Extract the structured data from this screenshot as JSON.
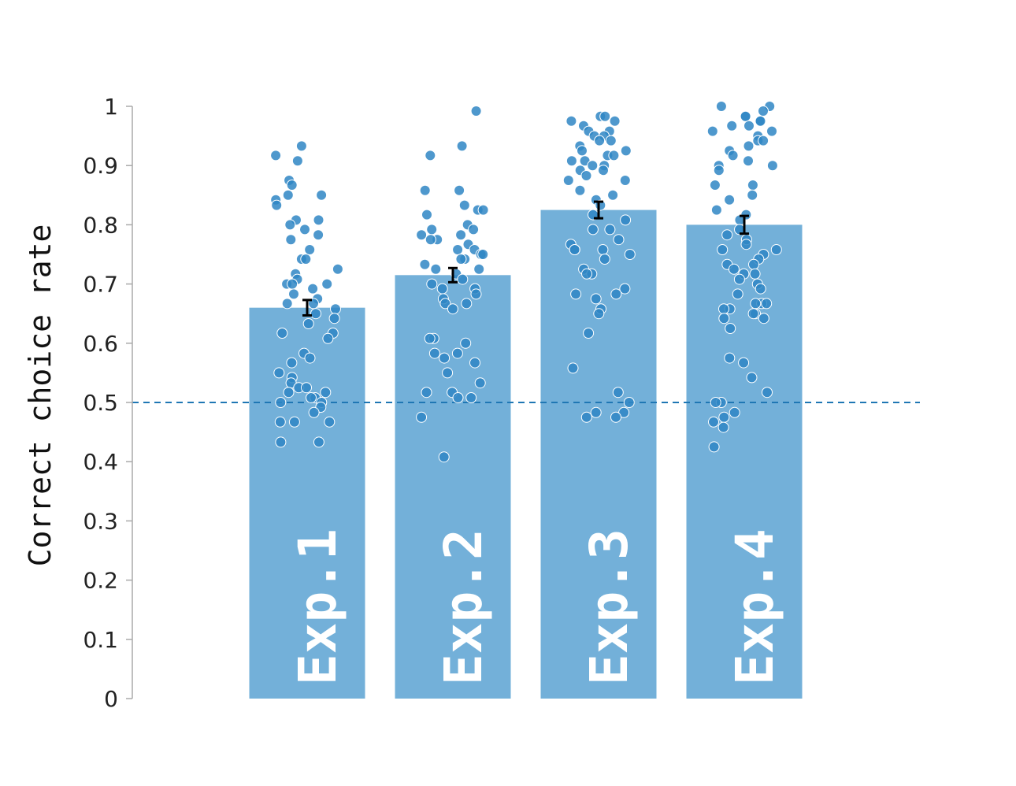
{
  "chart_data": {
    "type": "bar",
    "categories": [
      "Exp.1",
      "Exp.2",
      "Exp.3",
      "Exp.4"
    ],
    "values": [
      0.66,
      0.715,
      0.825,
      0.8
    ],
    "errors": [
      0.013,
      0.012,
      0.014,
      0.015
    ],
    "ylabel": "Correct choice rate",
    "ylim": [
      0,
      1
    ],
    "yticks": [
      0,
      0.1,
      0.2,
      0.3,
      0.4,
      0.5,
      0.6,
      0.7,
      0.8,
      0.9,
      1
    ],
    "ytick_labels": [
      "0",
      "0.1",
      "0.2",
      "0.3",
      "0.4",
      "0.5",
      "0.6",
      "0.7",
      "0.8",
      "0.9",
      "1"
    ],
    "reference_line": 0.5,
    "grid": false,
    "points": [
      [
        0.933,
        0.917,
        0.908,
        0.875,
        0.867,
        0.85,
        0.85,
        0.842,
        0.833,
        0.808,
        0.808,
        0.8,
        0.792,
        0.783,
        0.775,
        0.758,
        0.742,
        0.742,
        0.725,
        0.717,
        0.708,
        0.7,
        0.7,
        0.7,
        0.692,
        0.683,
        0.675,
        0.667,
        0.667,
        0.658,
        0.65,
        0.642,
        0.633,
        0.617,
        0.617,
        0.608,
        0.583,
        0.575,
        0.567,
        0.55,
        0.542,
        0.533,
        0.525,
        0.525,
        0.517,
        0.517,
        0.508,
        0.508,
        0.5,
        0.5,
        0.492,
        0.483,
        0.467,
        0.467,
        0.467,
        0.433,
        0.433
      ],
      [
        0.992,
        0.933,
        0.917,
        0.858,
        0.858,
        0.833,
        0.825,
        0.825,
        0.817,
        0.8,
        0.792,
        0.792,
        0.783,
        0.783,
        0.775,
        0.775,
        0.767,
        0.758,
        0.758,
        0.75,
        0.75,
        0.742,
        0.742,
        0.733,
        0.725,
        0.725,
        0.717,
        0.708,
        0.7,
        0.692,
        0.692,
        0.683,
        0.675,
        0.667,
        0.667,
        0.658,
        0.608,
        0.608,
        0.6,
        0.583,
        0.583,
        0.575,
        0.567,
        0.55,
        0.533,
        0.517,
        0.517,
        0.508,
        0.508,
        0.475,
        0.408
      ],
      [
        0.983,
        0.983,
        0.975,
        0.975,
        0.967,
        0.958,
        0.958,
        0.95,
        0.95,
        0.942,
        0.942,
        0.933,
        0.925,
        0.925,
        0.917,
        0.917,
        0.908,
        0.908,
        0.9,
        0.9,
        0.892,
        0.892,
        0.883,
        0.875,
        0.875,
        0.858,
        0.85,
        0.842,
        0.833,
        0.817,
        0.808,
        0.792,
        0.792,
        0.775,
        0.767,
        0.758,
        0.758,
        0.758,
        0.75,
        0.742,
        0.725,
        0.717,
        0.717,
        0.692,
        0.683,
        0.683,
        0.675,
        0.658,
        0.65,
        0.617,
        0.558,
        0.517,
        0.5,
        0.483,
        0.483,
        0.475,
        0.475
      ],
      [
        1.0,
        1.0,
        0.992,
        0.983,
        0.983,
        0.975,
        0.975,
        0.967,
        0.967,
        0.958,
        0.958,
        0.95,
        0.942,
        0.942,
        0.933,
        0.925,
        0.917,
        0.908,
        0.9,
        0.9,
        0.892,
        0.867,
        0.867,
        0.85,
        0.842,
        0.825,
        0.817,
        0.808,
        0.792,
        0.783,
        0.775,
        0.767,
        0.758,
        0.758,
        0.75,
        0.742,
        0.733,
        0.733,
        0.725,
        0.717,
        0.717,
        0.708,
        0.7,
        0.692,
        0.683,
        0.667,
        0.667,
        0.667,
        0.658,
        0.658,
        0.65,
        0.65,
        0.642,
        0.642,
        0.625,
        0.575,
        0.567,
        0.542,
        0.517,
        0.5,
        0.5,
        0.483,
        0.475,
        0.467,
        0.458,
        0.425
      ]
    ]
  }
}
